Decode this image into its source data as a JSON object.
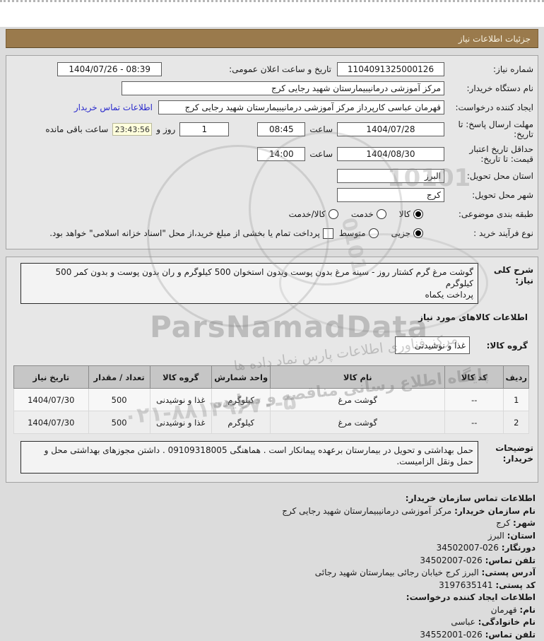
{
  "title_bar": {
    "text": "جزئیات اطلاعات نیاز"
  },
  "panel1": {
    "need_number_label": "شماره نیاز:",
    "need_number_value": "1104091325000126",
    "announce_label": "تاریخ و ساعت اعلان عمومی:",
    "announce_value": "1404/07/26 - 08:39",
    "buyer_org_label": "نام دستگاه خریدار:",
    "buyer_org_value": "مرکز آموزشی درمانیبیمارستان شهید رجایی کرج",
    "creator_label": "ایجاد کننده درخواست:",
    "creator_value": "قهرمان عباسی کارپرداز مرکز آموزشی درمانیبیمارستان شهید رجایی کرج",
    "creator_link": "اطلاعات تماس خریدار",
    "deadline_label": "مهلت ارسال پاسخ: تا تاریخ:",
    "deadline_date": "1404/07/28",
    "deadline_hour_label": "ساعت",
    "deadline_time": "08:45",
    "deadline_days": "1",
    "deadline_days_label": "روز و",
    "deadline_countdown": "23:43:56",
    "deadline_countdown_label": "ساعت باقی مانده",
    "validity_label": "حداقل تاریخ اعتبار قیمت: تا تاریخ:",
    "validity_date": "1404/08/30",
    "validity_hour_label": "ساعت",
    "validity_time": "14:00",
    "province_label": "استان محل تحویل:",
    "province_value": "البرز",
    "city_label": "شهر محل تحویل:",
    "city_value": "کرج",
    "class_label": "طبقه بندی موضوعی:",
    "class_opt1": "کالا",
    "class_opt1_selected": true,
    "class_opt2": "خدمت",
    "class_opt2_selected": false,
    "class_opt3": "کالا/خدمت",
    "class_opt3_selected": false,
    "process_label": "نوع فرآیند خرید :",
    "process_opt1": "جزیی",
    "process_opt1_selected": true,
    "process_opt2": "متوسط",
    "process_opt2_selected": false,
    "treasury_checkbox_label": "پرداخت تمام یا بخشی از مبلغ خرید،از محل \"اسناد خزانه اسلامی\" خواهد بود.",
    "treasury_checkbox_checked": false
  },
  "panel2": {
    "description_label": "شرح کلی نیاز:",
    "description_value": "گوشت مرغ گرم کشتار روز - سینه مرغ بدون پوست وبدون استخوان 500 کیلوگرم و ران بدون پوست و بدون کمر 500 کیلوگرم\nپرداخت یکماه",
    "goods_heading": "اطلاعات کالاهای مورد نیاز",
    "group_label": "گروه کالا:",
    "group_value": "غذا و نوشیدنی",
    "table": {
      "headers": [
        "ردیف",
        "کد کالا",
        "نام کالا",
        "واحد شمارش",
        "گروه کالا",
        "تعداد / مقدار",
        "تاریخ نیاز"
      ],
      "rows": [
        [
          "1",
          "--",
          "گوشت مرغ",
          "کیلوگرم",
          "غذا و نوشیدنی",
          "500",
          "1404/07/30"
        ],
        [
          "2",
          "--",
          "گوشت مرغ",
          "کیلوگرم",
          "غذا و نوشیدنی",
          "500",
          "1404/07/30"
        ]
      ]
    },
    "notes_label": "توضیحات خریدار:",
    "notes_value": "حمل بهداشتی و تحویل در بیمارستان برعهده پیمانکار است . هماهنگی 09109318005 . داشتن مجوزهای بهداشتی محل و\nحمل ونقل الزامیست."
  },
  "contact": {
    "org_heading": "اطلاعات تماس سازمان خریدار:",
    "org_name_label": "نام سازمان خریدار:",
    "org_name_value": "مرکز آموزشی درمانیبیمارستان شهید رجایی کرج",
    "city_label": "شهر:",
    "city_value": "کرج",
    "province_label": "استان:",
    "province_value": "البرز",
    "fax_label": "دورنگار:",
    "fax_value": "34502007-026",
    "phone_label": "تلفن تماس:",
    "phone_value": "34502007-026",
    "address_label": "آدرس پستی:",
    "address_value": "البرز کرج خیابان رجائی بیمارستان شهید رجائی",
    "postal_label": "کد پستی:",
    "postal_value": "3197635141",
    "creator_heading": "اطلاعات ایجاد کننده درخواست:",
    "first_name_label": "نام:",
    "first_name_value": "قهرمان",
    "last_name_label": "نام خانوادگی:",
    "last_name_value": "عباسی",
    "creator_phone_label": "تلفن تماس:",
    "creator_phone_value": "34552001-026"
  },
  "watermarks": {
    "brand": "ParsNamadData",
    "digits1": "10101",
    "digits2": "0101",
    "fa_line1": "مرکز فناوری اطلاعات پارس نماد داده ها",
    "fa_line2": "پایگاه اطلاع رسانی مناقصه و مزایده",
    "phone": "۰۲۱-۸۸۱۲۹۶۷۰-۵"
  },
  "colors": {
    "title_bar_bg": "#9a7a4c",
    "link": "#2929cc",
    "countdown_bg": "#ffffdc",
    "table_header_bg": "#c6c6c6",
    "page_bg": "#dcdcdc"
  }
}
